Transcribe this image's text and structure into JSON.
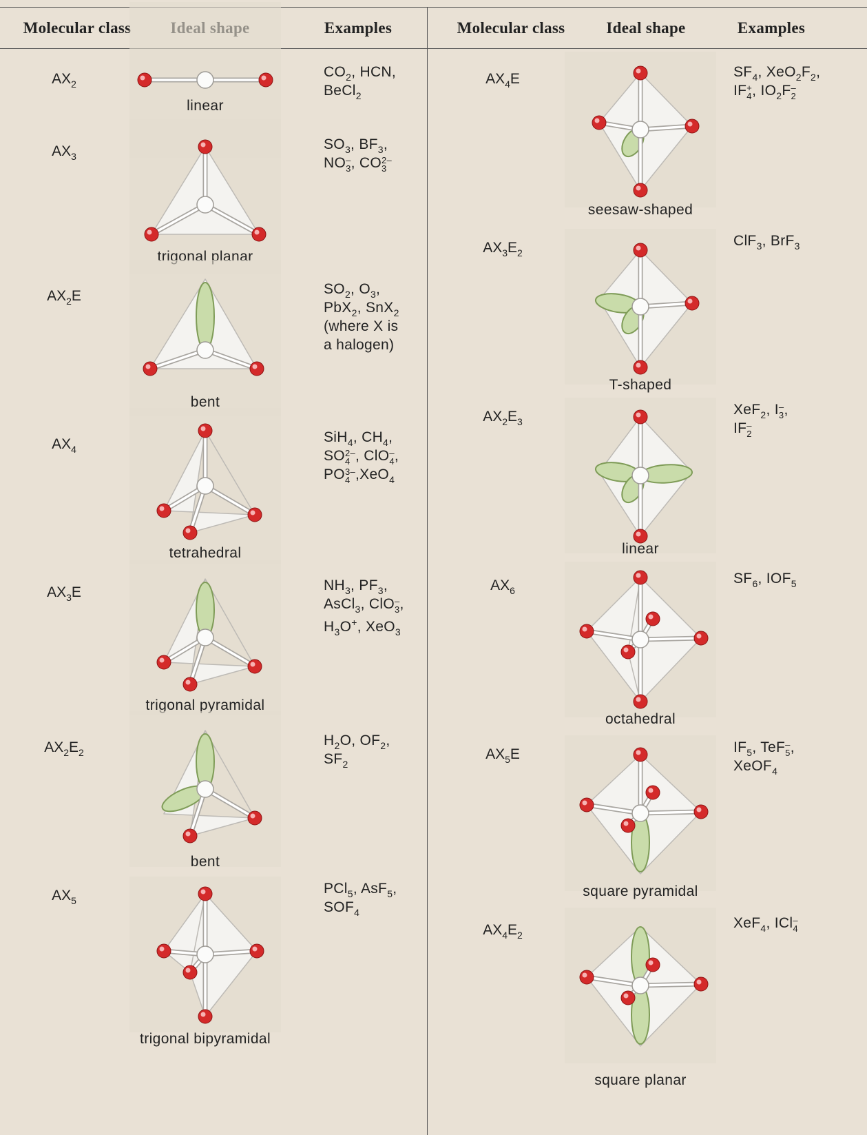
{
  "header": {
    "columns": [
      "Molecular class",
      "Ideal shape",
      "Examples",
      "Molecular class",
      "Ideal shape",
      "Examples"
    ]
  },
  "left": [
    {
      "class": [
        "AX",
        {
          "sub": "2"
        }
      ],
      "shape": "linear",
      "examples": [
        [
          "CO",
          {
            "sub": "2"
          },
          ", HCN,"
        ],
        [
          "BeCl",
          {
            "sub": "2"
          }
        ]
      ]
    },
    {
      "class": [
        "AX",
        {
          "sub": "3"
        }
      ],
      "shape": "trigonal planar",
      "examples": [
        [
          "SO",
          {
            "sub": "3"
          },
          ", BF",
          {
            "sub": "3"
          },
          ","
        ],
        [
          "NO",
          {
            "sub": "3",
            "sup": "–"
          },
          ", CO",
          {
            "sub": "3",
            "sup": "2–"
          }
        ]
      ]
    },
    {
      "class": [
        "AX",
        {
          "sub": "2"
        },
        "E"
      ],
      "shape": "bent",
      "examples": [
        [
          "SO",
          {
            "sub": "2"
          },
          ", O",
          {
            "sub": "3"
          },
          ","
        ],
        [
          "PbX",
          {
            "sub": "2"
          },
          ", SnX",
          {
            "sub": "2"
          }
        ],
        [
          "(where X is"
        ],
        [
          "a halogen)"
        ]
      ]
    },
    {
      "class": [
        "AX",
        {
          "sub": "4"
        }
      ],
      "shape": "tetrahedral",
      "examples": [
        [
          "SiH",
          {
            "sub": "4"
          },
          ", CH",
          {
            "sub": "4"
          },
          ","
        ],
        [
          "SO",
          {
            "sub": "4",
            "sup": "2–"
          },
          ", ClO",
          {
            "sub": "4",
            "sup": "–"
          },
          ","
        ],
        [
          "PO",
          {
            "sub": "4",
            "sup": "3–"
          },
          ",XeO",
          {
            "sub": "4"
          }
        ]
      ]
    },
    {
      "class": [
        "AX",
        {
          "sub": "3"
        },
        "E"
      ],
      "shape": "trigonal pyramidal",
      "examples": [
        [
          "NH",
          {
            "sub": "3"
          },
          ", PF",
          {
            "sub": "3"
          },
          ","
        ],
        [
          "AsCl",
          {
            "sub": "3"
          },
          ", ClO",
          {
            "sub": "3",
            "sup": "–"
          },
          ","
        ],
        [
          "H",
          {
            "sub": "3"
          },
          "O",
          {
            "sup": "+"
          },
          ", XeO",
          {
            "sub": "3"
          }
        ]
      ]
    },
    {
      "class": [
        "AX",
        {
          "sub": "2"
        },
        "E",
        {
          "sub": "2"
        }
      ],
      "shape": "bent",
      "examples": [
        [
          "H",
          {
            "sub": "2"
          },
          "O, OF",
          {
            "sub": "2"
          },
          ","
        ],
        [
          "SF",
          {
            "sub": "2"
          }
        ]
      ]
    },
    {
      "class": [
        "AX",
        {
          "sub": "5"
        }
      ],
      "shape": "trigonal bipyramidal",
      "examples": [
        [
          "PCl",
          {
            "sub": "5"
          },
          ", AsF",
          {
            "sub": "5"
          },
          ","
        ],
        [
          "SOF",
          {
            "sub": "4"
          }
        ]
      ]
    }
  ],
  "right": [
    {
      "class": [
        "AX",
        {
          "sub": "4"
        },
        "E"
      ],
      "shape": "seesaw-shaped",
      "examples": [
        [
          "SF",
          {
            "sub": "4"
          },
          ", XeO",
          {
            "sub": "2"
          },
          "F",
          {
            "sub": "2"
          },
          ","
        ],
        [
          "IF",
          {
            "sub": "4",
            "sup": "+"
          },
          ", IO",
          {
            "sub": "2"
          },
          "F",
          {
            "sub": "2",
            "sup": "–"
          }
        ]
      ]
    },
    {
      "class": [
        "AX",
        {
          "sub": "3"
        },
        "E",
        {
          "sub": "2"
        }
      ],
      "shape": "T-shaped",
      "examples": [
        [
          "ClF",
          {
            "sub": "3"
          },
          ", BrF",
          {
            "sub": "3"
          }
        ]
      ]
    },
    {
      "class": [
        "AX",
        {
          "sub": "2"
        },
        "E",
        {
          "sub": "3"
        }
      ],
      "shape": "linear",
      "examples": [
        [
          "XeF",
          {
            "sub": "2"
          },
          ", I",
          {
            "sub": "3",
            "sup": "–"
          },
          ","
        ],
        [
          "IF",
          {
            "sub": "2",
            "sup": "–"
          }
        ]
      ]
    },
    {
      "class": [
        "AX",
        {
          "sub": "6"
        }
      ],
      "shape": "octahedral",
      "examples": [
        [
          "SF",
          {
            "sub": "6"
          },
          ", IOF",
          {
            "sub": "5"
          }
        ]
      ]
    },
    {
      "class": [
        "AX",
        {
          "sub": "5"
        },
        "E"
      ],
      "shape": "square pyramidal",
      "examples": [
        [
          "IF",
          {
            "sub": "5"
          },
          ", TeF",
          {
            "sub": "5",
            "sup": "–"
          },
          ","
        ],
        [
          "XeOF",
          {
            "sub": "4"
          }
        ]
      ]
    },
    {
      "class": [
        "AX",
        {
          "sub": "4"
        },
        "E",
        {
          "sub": "2"
        }
      ],
      "shape": "square planar",
      "examples": [
        [
          "XeF",
          {
            "sub": "4"
          },
          ", ICl",
          {
            "sub": "4",
            "sup": "–"
          }
        ]
      ]
    }
  ]
}
